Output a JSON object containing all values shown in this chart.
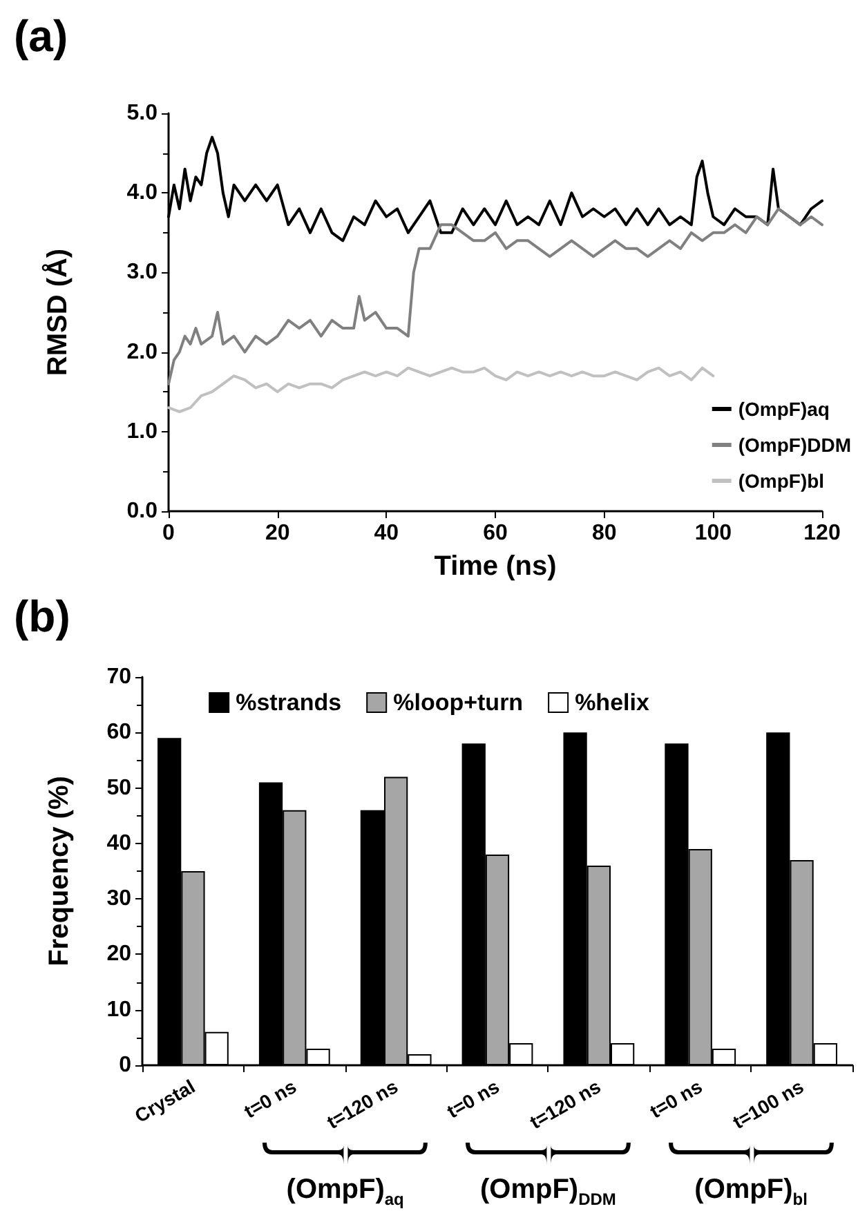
{
  "chart_data": [
    {
      "type": "line",
      "title": "(a)",
      "xlabel": "Time (ns)",
      "ylabel": "RMSD (Å)",
      "xlim": [
        0,
        120
      ],
      "xticks": [
        0,
        20,
        40,
        60,
        80,
        100,
        120
      ],
      "ylim": [
        0,
        5
      ],
      "yticks": [
        {
          "value": 0,
          "label": "0.0"
        },
        {
          "value": 1,
          "label": "1.0"
        },
        {
          "value": 2,
          "label": "2.0"
        },
        {
          "value": 3,
          "label": "3.0"
        },
        {
          "value": 4,
          "label": "4.0"
        },
        {
          "value": 5,
          "label": "5.0"
        }
      ],
      "legend": "bottom right",
      "grid": false,
      "marker": "none",
      "line_style": "solid",
      "series": [
        {
          "name": "(OmpF)aq",
          "color": "#000000",
          "x": [
            0,
            1,
            2,
            3,
            4,
            5,
            6,
            7,
            8,
            9,
            10,
            11,
            12,
            14,
            16,
            18,
            20,
            22,
            24,
            26,
            28,
            30,
            32,
            34,
            36,
            38,
            40,
            42,
            44,
            46,
            48,
            50,
            52,
            54,
            56,
            58,
            60,
            62,
            64,
            66,
            68,
            70,
            72,
            74,
            76,
            78,
            80,
            82,
            84,
            86,
            88,
            90,
            92,
            94,
            96,
            97,
            98,
            99,
            100,
            102,
            104,
            106,
            108,
            110,
            111,
            112,
            114,
            116,
            118,
            120
          ],
          "values": [
            3.7,
            4.1,
            3.8,
            4.3,
            3.9,
            4.2,
            4.1,
            4.5,
            4.7,
            4.5,
            4.0,
            3.7,
            4.1,
            3.9,
            4.1,
            3.9,
            4.1,
            3.6,
            3.8,
            3.5,
            3.8,
            3.5,
            3.4,
            3.7,
            3.6,
            3.9,
            3.7,
            3.8,
            3.5,
            3.7,
            3.9,
            3.5,
            3.5,
            3.8,
            3.6,
            3.8,
            3.6,
            3.9,
            3.6,
            3.7,
            3.6,
            3.9,
            3.6,
            4.0,
            3.7,
            3.8,
            3.7,
            3.8,
            3.6,
            3.8,
            3.6,
            3.8,
            3.6,
            3.7,
            3.6,
            4.2,
            4.4,
            4.0,
            3.7,
            3.6,
            3.8,
            3.7,
            3.7,
            3.6,
            4.3,
            3.8,
            3.7,
            3.6,
            3.8,
            3.9
          ]
        },
        {
          "name": "(OmpF)DDM",
          "color": "#808080",
          "x": [
            0,
            1,
            2,
            3,
            4,
            5,
            6,
            8,
            9,
            10,
            12,
            14,
            16,
            18,
            20,
            22,
            24,
            26,
            28,
            30,
            32,
            34,
            35,
            36,
            38,
            40,
            42,
            44,
            45,
            46,
            48,
            50,
            52,
            54,
            56,
            58,
            60,
            62,
            64,
            66,
            68,
            70,
            72,
            74,
            76,
            78,
            80,
            82,
            84,
            86,
            88,
            90,
            92,
            94,
            96,
            98,
            100,
            102,
            104,
            106,
            108,
            110,
            112,
            114,
            116,
            118,
            120
          ],
          "values": [
            1.6,
            1.9,
            2.0,
            2.2,
            2.1,
            2.3,
            2.1,
            2.2,
            2.5,
            2.1,
            2.2,
            2.0,
            2.2,
            2.1,
            2.2,
            2.4,
            2.3,
            2.4,
            2.2,
            2.4,
            2.3,
            2.3,
            2.7,
            2.4,
            2.5,
            2.3,
            2.3,
            2.2,
            3.0,
            3.3,
            3.3,
            3.6,
            3.6,
            3.5,
            3.4,
            3.4,
            3.5,
            3.3,
            3.4,
            3.4,
            3.3,
            3.2,
            3.3,
            3.4,
            3.3,
            3.2,
            3.3,
            3.4,
            3.3,
            3.3,
            3.2,
            3.3,
            3.4,
            3.3,
            3.5,
            3.4,
            3.5,
            3.5,
            3.6,
            3.5,
            3.7,
            3.6,
            3.8,
            3.7,
            3.6,
            3.7,
            3.6
          ]
        },
        {
          "name": "(OmpF)bl",
          "color": "#c0c0c0",
          "x": [
            0,
            2,
            4,
            6,
            8,
            10,
            12,
            14,
            16,
            18,
            20,
            22,
            24,
            26,
            28,
            30,
            32,
            34,
            36,
            38,
            40,
            42,
            44,
            46,
            48,
            50,
            52,
            54,
            56,
            58,
            60,
            62,
            64,
            66,
            68,
            70,
            72,
            74,
            76,
            78,
            80,
            82,
            84,
            86,
            88,
            90,
            92,
            94,
            96,
            98,
            100
          ],
          "values": [
            1.3,
            1.25,
            1.3,
            1.45,
            1.5,
            1.6,
            1.7,
            1.65,
            1.55,
            1.6,
            1.5,
            1.6,
            1.55,
            1.6,
            1.6,
            1.55,
            1.65,
            1.7,
            1.75,
            1.7,
            1.75,
            1.7,
            1.8,
            1.75,
            1.7,
            1.75,
            1.8,
            1.75,
            1.75,
            1.8,
            1.7,
            1.65,
            1.75,
            1.7,
            1.75,
            1.7,
            1.75,
            1.7,
            1.75,
            1.7,
            1.7,
            1.75,
            1.7,
            1.65,
            1.75,
            1.8,
            1.7,
            1.75,
            1.65,
            1.8,
            1.7
          ]
        }
      ]
    },
    {
      "type": "bar",
      "title": "(b)",
      "ylabel": "Frequency (%)",
      "categories": [
        "Crystal",
        "t=0 ns",
        "t=120 ns",
        "t=0 ns",
        "t=120 ns",
        "t=0 ns",
        "t=100 ns"
      ],
      "ylim": [
        0,
        70
      ],
      "yticks": [
        0,
        10,
        20,
        30,
        40,
        50,
        60,
        70
      ],
      "legend": "top",
      "grid": false,
      "annotations": [
        "(OmpF)$_{aq}$",
        "(OmpF)$_{DDM}$",
        "(OmpF)$_{bl}$"
      ],
      "series": [
        {
          "name": "%strands",
          "color": "#000000",
          "values": [
            59,
            51,
            46,
            58,
            60,
            58,
            60
          ]
        },
        {
          "name": "%loop+turn",
          "color": "#a6a6a6",
          "values": [
            35,
            46,
            52,
            38,
            36,
            39,
            37
          ]
        },
        {
          "name": "%helix",
          "color": "#ffffff",
          "values": [
            6,
            3,
            2,
            4,
            4,
            3,
            4
          ]
        }
      ]
    }
  ]
}
